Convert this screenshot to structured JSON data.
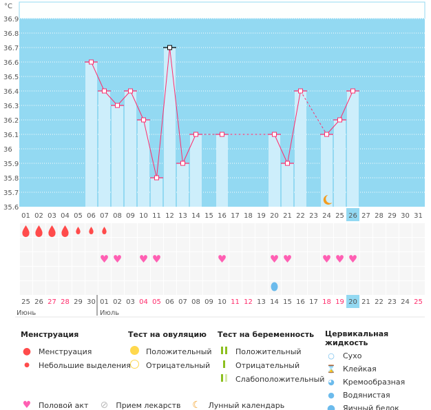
{
  "chart_data": {
    "type": "line",
    "unit_label": "°C",
    "ylim": [
      35.6,
      36.9
    ],
    "yticks": [
      "35.6",
      "35.7",
      "35.8",
      "35.9",
      "36",
      "36.1",
      "36.2",
      "36.3",
      "36.4",
      "36.5",
      "36.6",
      "36.7",
      "36.8",
      "36.9"
    ],
    "x_cycle_days": [
      "01",
      "02",
      "03",
      "04",
      "05",
      "06",
      "07",
      "08",
      "09",
      "10",
      "11",
      "12",
      "13",
      "14",
      "15",
      "16",
      "17",
      "18",
      "19",
      "20",
      "21",
      "22",
      "23",
      "24",
      "25",
      "26",
      "27",
      "28",
      "29",
      "30",
      "31"
    ],
    "current_day": "26",
    "series": [
      {
        "name": "temperature",
        "points": [
          {
            "day": 6,
            "value": 36.6
          },
          {
            "day": 7,
            "value": 36.4
          },
          {
            "day": 8,
            "value": 36.3
          },
          {
            "day": 9,
            "value": 36.4
          },
          {
            "day": 10,
            "value": 36.2
          },
          {
            "day": 11,
            "value": 35.8
          },
          {
            "day": 12,
            "value": 36.7,
            "highlight": true
          },
          {
            "day": 13,
            "value": 35.9
          },
          {
            "day": 14,
            "value": 36.1
          },
          {
            "day": 16,
            "value": 36.1
          },
          {
            "day": 20,
            "value": 36.1
          },
          {
            "day": 21,
            "value": 35.9
          },
          {
            "day": 22,
            "value": 36.4
          },
          {
            "day": 24,
            "value": 36.1
          },
          {
            "day": 25,
            "value": 36.2
          },
          {
            "day": 26,
            "value": 36.4
          }
        ]
      }
    ],
    "moon_day": 24,
    "menstruation_heavy_days": [
      1,
      2,
      3,
      4
    ],
    "menstruation_light_days": [
      5,
      6,
      7
    ],
    "intercourse_days": [
      7,
      8,
      10,
      11,
      16,
      20,
      21,
      24,
      25,
      26
    ],
    "egg_white_days": [
      20
    ],
    "calendar_dates": [
      "25",
      "26",
      "27",
      "28",
      "29",
      "30",
      "01",
      "02",
      "03",
      "04",
      "05",
      "06",
      "07",
      "08",
      "09",
      "10",
      "11",
      "12",
      "13",
      "14",
      "15",
      "16",
      "17",
      "18",
      "19",
      "20",
      "21",
      "22",
      "23",
      "24",
      "25"
    ],
    "weekend_indices": [
      2,
      3,
      9,
      10,
      16,
      17,
      23,
      24,
      30
    ],
    "today_index": 25,
    "months": [
      "Июнь",
      "Июль"
    ],
    "colors": {
      "bg": "#93d9f2",
      "bar": "#cdeefb",
      "line": "#ff2b6b",
      "moon": "#f39c1f",
      "drop": "#ff4b4b",
      "heart": "#ff5fb3",
      "weekend": "#ff2b6b",
      "egg": "#6cbbec"
    }
  },
  "legend": {
    "menstruation": {
      "title": "Менструация",
      "items": [
        "Менструация",
        "Небольшие выделения"
      ]
    },
    "ovulation": {
      "title": "Тест на овуляцию",
      "items": [
        "Положительный",
        "Отрицательный"
      ]
    },
    "pregnancy": {
      "title": "Тест на беременность",
      "items": [
        "Положительный",
        "Отрицательный",
        "Слабоположительный"
      ]
    },
    "cervical": {
      "title": "Цервикальная жидкость",
      "items": [
        "Сухо",
        "Клейкая",
        "Кремообразная",
        "Водянистая",
        "Яичный белок"
      ]
    },
    "bottom": [
      "Половой акт",
      "Прием лекарств",
      "Лунный календарь"
    ]
  }
}
